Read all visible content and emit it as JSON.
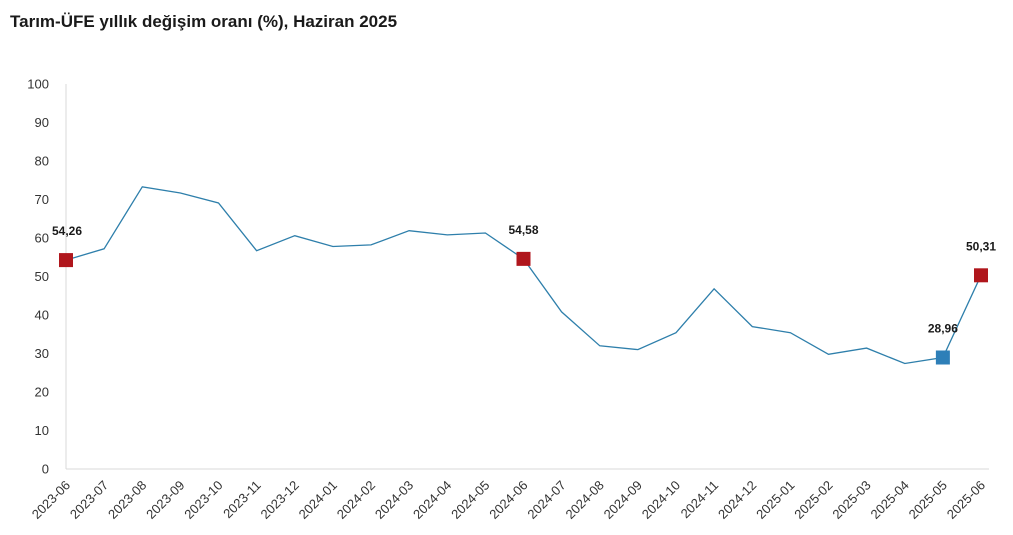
{
  "chart_data": {
    "type": "line",
    "title": "Tarım-ÜFE yıllık değişim oranı (%), Haziran 2025",
    "xlabel": "",
    "ylabel": "",
    "ylim": [
      0,
      100
    ],
    "yticks": [
      "0",
      "10",
      "20",
      "30",
      "40",
      "50",
      "60",
      "70",
      "80",
      "90",
      "100"
    ],
    "grid": false,
    "legend": "none",
    "categories": [
      "2023-06",
      "2023-07",
      "2023-08",
      "2023-09",
      "2023-10",
      "2023-11",
      "2023-12",
      "2024-01",
      "2024-02",
      "2024-03",
      "2024-04",
      "2024-05",
      "2024-06",
      "2024-07",
      "2024-08",
      "2024-09",
      "2024-10",
      "2024-11",
      "2024-12",
      "2025-01",
      "2025-02",
      "2025-03",
      "2025-04",
      "2025-05",
      "2025-06"
    ],
    "series": [
      {
        "values": [
          54.26,
          57.2,
          73.3,
          71.7,
          69.1,
          56.7,
          60.6,
          57.8,
          58.2,
          61.9,
          60.8,
          61.3,
          54.58,
          40.8,
          32.0,
          31.0,
          35.4,
          46.8,
          37.0,
          35.4,
          29.8,
          31.4,
          27.4,
          28.96,
          50.31
        ],
        "color": "#2e7fab"
      }
    ],
    "highlights": [
      {
        "index": 0,
        "label": "54,26",
        "color": "#b0161c"
      },
      {
        "index": 12,
        "label": "54,58",
        "color": "#b0161c"
      },
      {
        "index": 23,
        "label": "28,96",
        "color": "#2e7fb8"
      },
      {
        "index": 24,
        "label": "50,31",
        "color": "#b0161c"
      }
    ],
    "axis_color": "#d9d9d9"
  }
}
